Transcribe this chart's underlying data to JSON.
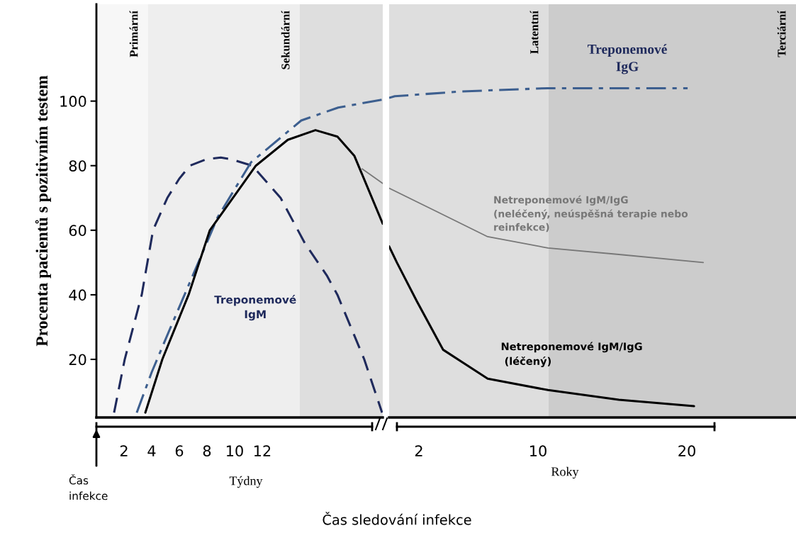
{
  "chart_data": [
    {
      "type": "line",
      "ylabel": "Procenta pacientů s pozitivním testem",
      "xlabel": "Týdny",
      "xlim": [
        0,
        20.72
      ],
      "ylim": [
        2,
        130
      ],
      "xticks": [
        2,
        4,
        6,
        8,
        10,
        12
      ],
      "yticks": [
        20,
        40,
        60,
        80,
        100
      ],
      "grid": false,
      "legend": false,
      "series": [
        {
          "name": "Treponemové\nIgM",
          "color": "#1f2a5c",
          "line_style": "dashed",
          "x": [
            1.28,
            2.05,
            3.28,
            4.1,
            5.13,
            6.0,
            6.77,
            7.95,
            9.0,
            9.74,
            11.28,
            13.33,
            15.08,
            16.67,
            17.44,
            19.38,
            20.67
          ],
          "values": [
            3.5,
            20,
            40,
            60,
            70,
            76,
            80,
            82,
            82.5,
            82,
            80,
            70,
            56,
            46,
            40,
            20,
            3.5
          ]
        },
        {
          "color": "#3d5f8f",
          "line_style": "dashdot",
          "x": [
            2.92,
            4.0,
            5.28,
            8.77,
            11.18,
            14.82,
            17.5,
            20.72
          ],
          "values": [
            3.5,
            16,
            29,
            64,
            81,
            94,
            98,
            100.5
          ]
        },
        {
          "color": "#000000",
          "line_style": "solid",
          "x": [
            3.54,
            4.77,
            6.67,
            8.21,
            11.54,
            13.85,
            15.85,
            17.44,
            18.67,
            20.72
          ],
          "values": [
            3.5,
            20,
            40,
            60,
            80,
            88,
            91,
            89,
            83,
            62
          ]
        },
        {
          "color": "#777777",
          "line_style": "solid",
          "x": [
            19.23,
            20.72
          ],
          "values": [
            79,
            74.5
          ]
        }
      ],
      "bands": [
        {
          "axis": "x",
          "from": 0,
          "to": 3.74,
          "label": "Primární",
          "color": "#f7f7f7"
        },
        {
          "axis": "x",
          "from": 3.74,
          "to": 14.72,
          "label": "Sekundární",
          "color": "#eeeeee"
        },
        {
          "axis": "x",
          "from": 14.72,
          "to": 20.72,
          "label": null,
          "color": "#dedede"
        }
      ],
      "annotations": [
        "Čas\ninfekce",
        "Čas sledování infekce"
      ]
    },
    {
      "type": "line",
      "xlabel": "Roky",
      "xlim": [
        0,
        27.33
      ],
      "ylim": [
        2,
        130
      ],
      "xticks": [
        2,
        10,
        20
      ],
      "yticks": [
        20,
        40,
        60,
        80,
        100
      ],
      "tick_labels": "x",
      "grid": false,
      "legend": false,
      "series": [
        {
          "name": "Treponemové\nIgG",
          "color": "#3d5f8f",
          "line_style": "dashdot",
          "x": [
            0,
            0.38,
            4.86,
            10.67,
            20.05
          ],
          "values": [
            101,
            101.5,
            103,
            104,
            104
          ]
        },
        {
          "name": "Netreponemové IgM/IgG\n (léčený)",
          "color": "#000000",
          "line_style": "solid",
          "x": [
            0,
            0.52,
            1.86,
            3.62,
            6.62,
            10.67,
            15.43,
            20.48
          ],
          "values": [
            55,
            50,
            38,
            23,
            14,
            10.5,
            7.5,
            5.5
          ]
        },
        {
          "name": "Netreponemové IgM/IgG\n(neléčený, neúspěšná terapie nebo\nreinfekce)",
          "color": "#777777",
          "line_style": "solid",
          "x": [
            0,
            3.1,
            6.62,
            10.67,
            15.43,
            21.1
          ],
          "values": [
            73,
            66,
            58,
            54.5,
            52.5,
            50
          ]
        }
      ],
      "bands": [
        {
          "axis": "x",
          "from": 0,
          "to": 10.71,
          "label": "Latentní",
          "color": "#dedede"
        },
        {
          "axis": "x",
          "from": 10.71,
          "to": 27.33,
          "label": "Terciární",
          "color": "#cccccc"
        }
      ]
    }
  ]
}
